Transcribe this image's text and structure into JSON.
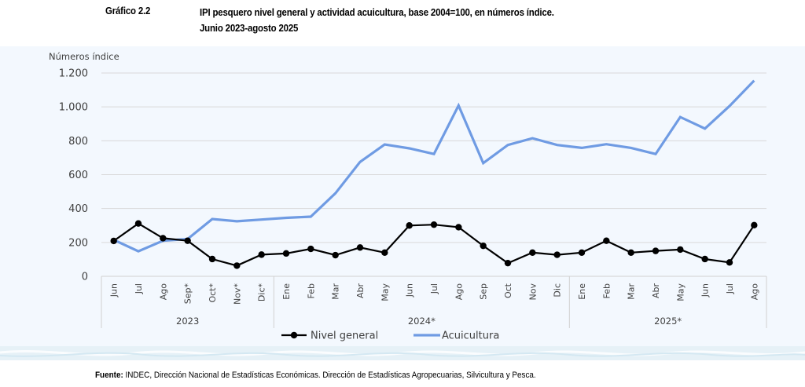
{
  "header": {
    "label": "Gráfico 2.2",
    "title_line1": "IPI pesquero nivel general y actividad acuicultura, base 2004=100, en números índice.",
    "title_line2": "Junio 2023-agosto 2025"
  },
  "source": {
    "label": "Fuente:",
    "text": " INDEC, Dirección Nacional de Estadísticas Económicas. Dirección de Estadísticas Agropecuarias, Silvicultura y Pesca."
  },
  "chart_data": {
    "type": "line",
    "title": "IPI pesquero nivel general y actividad acuicultura, base 2004=100, en números índice. Junio 2023-agosto 2025",
    "ylabel": "Números índice",
    "xlabel": "",
    "ylim": [
      0,
      1200
    ],
    "yticks": [
      0,
      200,
      400,
      600,
      800,
      1000,
      1200
    ],
    "ytick_labels": [
      "0",
      "200",
      "400",
      "600",
      "800",
      "1.000",
      "1.200"
    ],
    "grid": true,
    "legend_position": "bottom",
    "categories": [
      "Jun",
      "Jul",
      "Ago",
      "Sep*",
      "Oct*",
      "Nov*",
      "Dic*",
      "Ene",
      "Feb",
      "Mar",
      "Abr",
      "May",
      "Jun",
      "Jul",
      "Ago",
      "Sep",
      "Oct",
      "Nov",
      "Dic",
      "Ene",
      "Feb",
      "Mar",
      "Abr",
      "May",
      "Jun",
      "Jul",
      "Ago"
    ],
    "groups": [
      {
        "label": "2023",
        "count": 7
      },
      {
        "label": "2024*",
        "count": 12
      },
      {
        "label": "2025*",
        "count": 8
      }
    ],
    "series": [
      {
        "name": "Nivel general",
        "color": "#000000",
        "markers": true,
        "values": [
          209,
          312,
          225,
          210,
          102,
          63,
          128,
          135,
          162,
          125,
          170,
          140,
          300,
          305,
          290,
          180,
          78,
          140,
          127,
          140,
          210,
          140,
          150,
          158,
          102,
          82,
          302
        ]
      },
      {
        "name": "Acuicultura",
        "color": "#6f9be3",
        "markers": false,
        "values": [
          215,
          148,
          210,
          220,
          338,
          325,
          335,
          345,
          352,
          490,
          675,
          778,
          755,
          722,
          1008,
          668,
          775,
          815,
          775,
          758,
          780,
          758,
          722,
          940,
          872,
          1005,
          1155
        ]
      }
    ]
  }
}
